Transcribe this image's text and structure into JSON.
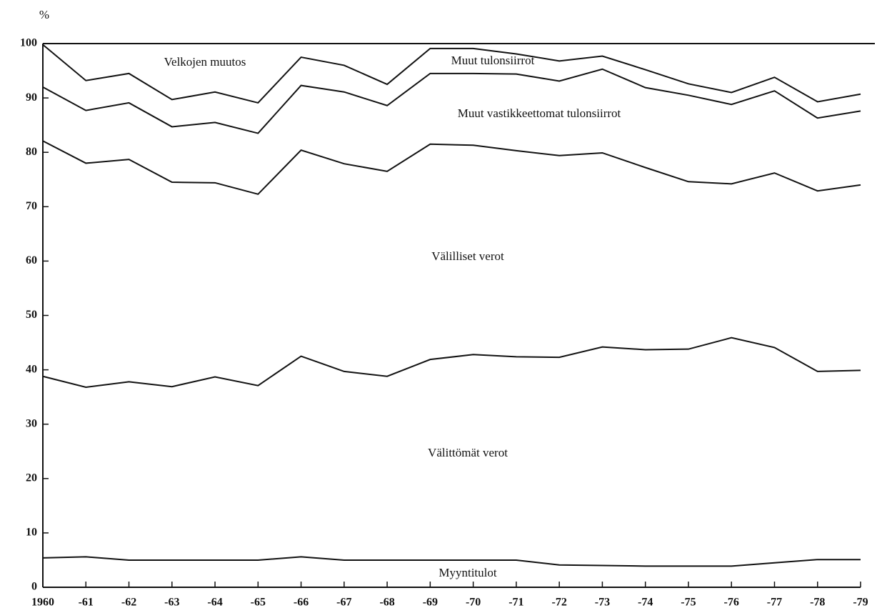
{
  "chart_data": {
    "type": "stacked_line",
    "y_label": "%",
    "categories": [
      "1960",
      "-61",
      "-62",
      "-63",
      "-64",
      "-65",
      "-66",
      "-67",
      "-68",
      "-69",
      "-70",
      "-71",
      "-72",
      "-73",
      "-74",
      "-75",
      "-76",
      "-77",
      "-78",
      "-79"
    ],
    "ylim": [
      0,
      100
    ],
    "yticks": [
      0,
      10,
      20,
      30,
      40,
      50,
      60,
      70,
      80,
      90,
      100
    ],
    "series": [
      {
        "name": "Myyntitulot",
        "color": "#111111",
        "values": [
          5.4,
          5.6,
          5.0,
          5.0,
          5.0,
          5.0,
          5.6,
          5.0,
          5.0,
          5.0,
          5.0,
          5.0,
          4.1,
          4.0,
          3.9,
          3.9,
          3.9,
          4.5,
          5.1,
          5.1
        ]
      },
      {
        "name": "Välittömät verot",
        "color": "#111111",
        "values": [
          33.4,
          31.2,
          32.8,
          31.9,
          33.7,
          32.1,
          36.9,
          34.7,
          33.8,
          36.9,
          37.8,
          37.4,
          38.2,
          40.2,
          39.8,
          39.9,
          42.0,
          39.6,
          34.6,
          34.8
        ]
      },
      {
        "name": "Välilliset verot",
        "color": "#111111",
        "values": [
          43.3,
          41.2,
          40.9,
          37.6,
          35.7,
          35.2,
          37.9,
          38.2,
          37.7,
          39.6,
          38.5,
          37.9,
          37.1,
          35.7,
          33.5,
          30.8,
          28.3,
          32.1,
          33.2,
          34.1
        ]
      },
      {
        "name": "Muut vastikkeettomat tulonsiirrot",
        "color": "#111111",
        "values": [
          9.9,
          9.7,
          10.4,
          10.2,
          11.1,
          11.2,
          11.9,
          13.2,
          12.1,
          13.0,
          13.2,
          14.1,
          13.7,
          15.4,
          14.7,
          15.9,
          14.6,
          15.1,
          13.4,
          13.6
        ]
      },
      {
        "name": "Muut tulonsiirrot",
        "color": "#111111",
        "values": [
          7.8,
          5.5,
          5.4,
          5.0,
          5.6,
          5.6,
          5.2,
          4.9,
          3.9,
          4.6,
          4.6,
          3.7,
          3.7,
          2.4,
          3.3,
          2.1,
          2.2,
          2.5,
          3.0,
          3.1
        ]
      },
      {
        "name": "Velkojen muutos",
        "color": "#111111",
        "values": [
          0.2,
          6.8,
          5.5,
          10.3,
          8.9,
          10.9,
          2.5,
          4.0,
          7.5,
          0.9,
          0.9,
          1.9,
          3.2,
          2.3,
          4.8,
          7.4,
          9.0,
          6.2,
          10.7,
          9.3
        ]
      }
    ]
  }
}
